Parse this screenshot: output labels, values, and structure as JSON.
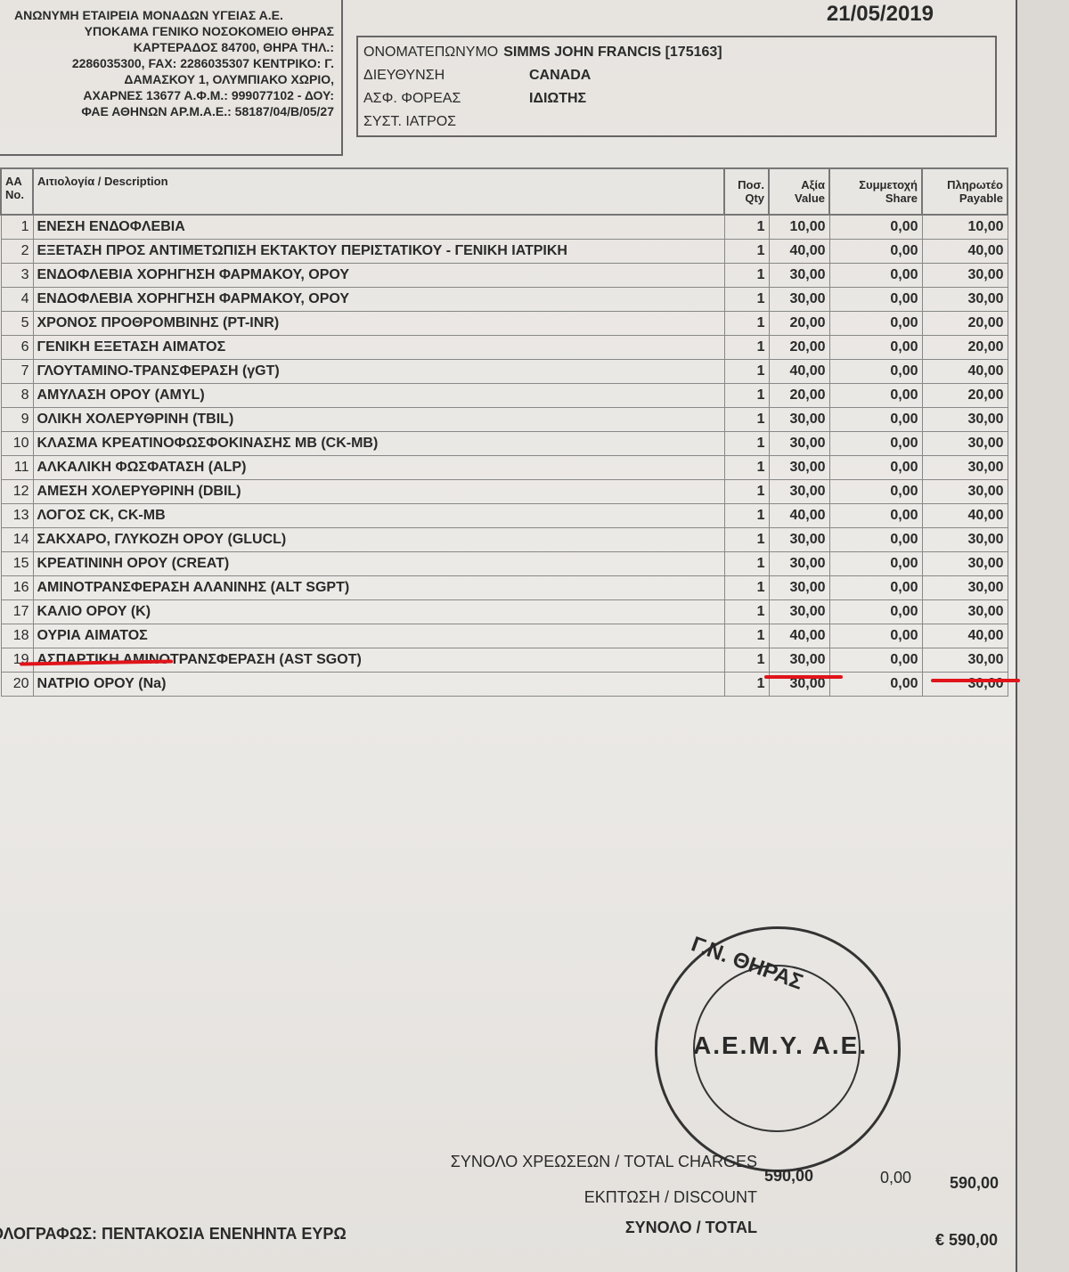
{
  "issuer": {
    "company": "ΑΝΩΝΥΜΗ ΕΤΑΙΡΕΙΑ ΜΟΝΑΔΩΝ ΥΓΕΙΑΣ Α.Ε.",
    "lines": [
      "ΥΠΟΚΑΜΑ ΓΕΝΙΚΟ ΝΟΣΟΚΟΜΕΙΟ ΘΗΡΑΣ",
      "ΚΑΡΤΕΡΑΔΟΣ 84700, ΘΗΡΑ ΤΗΛ.:",
      "2286035300, FAX: 2286035307 ΚΕΝΤΡΙΚΟ: Γ.",
      "ΔΑΜΑΣΚΟΥ 1, ΟΛΥΜΠΙΑΚΟ ΧΩΡΙΟ,",
      "ΑΧΑΡΝΕΣ 13677 Α.Φ.Μ.: 999077102 - ΔΟΥ:",
      "ΦΑΕ ΑΘΗΝΩΝ ΑΡ.Μ.Α.Ε.: 58187/04/Β/05/27"
    ]
  },
  "date": "21/05/2019",
  "patient": [
    {
      "label": "ΟΝΟΜΑΤΕΠΩΝΥΜΟ",
      "value": "SIMMS JOHN FRANCIS [175163]"
    },
    {
      "label": "ΔΙΕΥΘΥΝΣΗ",
      "value": "CANADA"
    },
    {
      "label": "ΑΣΦ. ΦΟΡΕΑΣ",
      "value": "ΙΔΙΩΤΗΣ"
    },
    {
      "label": "ΣΥΣΤ. ΙΑΤΡΟΣ",
      "value": ""
    }
  ],
  "table": {
    "headers": {
      "no": "AA No.",
      "desc": "Αιτιολογία / Description",
      "qty": "Ποσ. Qty",
      "value": "Αξία Value",
      "share": "Συμμετοχή Share",
      "payable": "Πληρωτέο Payable"
    },
    "rows": [
      [
        "1",
        "ΕΝΕΣΗ ΕΝΔΟΦΛΕΒΙΑ",
        "1",
        "10,00",
        "0,00",
        "10,00"
      ],
      [
        "2",
        "ΕΞΕΤΑΣΗ ΠΡΟΣ ΑΝΤΙΜΕΤΩΠΙΣΗ ΕΚΤΑΚΤΟΥ ΠΕΡΙΣΤΑΤΙΚΟΥ - ΓΕΝΙΚΗ ΙΑΤΡΙΚΗ",
        "1",
        "40,00",
        "0,00",
        "40,00"
      ],
      [
        "3",
        "ΕΝΔΟΦΛΕΒΙΑ ΧΟΡΗΓΗΣΗ ΦΑΡΜΑΚΟΥ, ΟΡΟΥ",
        "1",
        "30,00",
        "0,00",
        "30,00"
      ],
      [
        "4",
        "ΕΝΔΟΦΛΕΒΙΑ ΧΟΡΗΓΗΣΗ ΦΑΡΜΑΚΟΥ, ΟΡΟΥ",
        "1",
        "30,00",
        "0,00",
        "30,00"
      ],
      [
        "5",
        "ΧΡΟΝΟΣ ΠΡΟΘΡΟΜΒΙΝΗΣ (PT-INR)",
        "1",
        "20,00",
        "0,00",
        "20,00"
      ],
      [
        "6",
        "ΓΕΝΙΚΗ ΕΞΕΤΑΣΗ ΑΙΜΑΤΟΣ",
        "1",
        "20,00",
        "0,00",
        "20,00"
      ],
      [
        "7",
        "ΓΛΟΥΤΑΜΙΝΟ-ΤΡΑΝΣΦΕΡΑΣΗ (γGT)",
        "1",
        "40,00",
        "0,00",
        "40,00"
      ],
      [
        "8",
        "ΑΜΥΛΑΣΗ ΟΡΟΥ (AMYL)",
        "1",
        "20,00",
        "0,00",
        "20,00"
      ],
      [
        "9",
        "ΟΛΙΚΗ ΧΟΛΕΡΥΘΡΙΝΗ (TBIL)",
        "1",
        "30,00",
        "0,00",
        "30,00"
      ],
      [
        "10",
        "ΚΛΑΣΜΑ ΚΡΕΑΤΙΝΟΦΩΣΦΟΚΙΝΑΣΗΣ ΜΒ (CK-MB)",
        "1",
        "30,00",
        "0,00",
        "30,00"
      ],
      [
        "11",
        "ΑΛΚΑΛΙΚΗ ΦΩΣΦΑΤΑΣΗ (ALP)",
        "1",
        "30,00",
        "0,00",
        "30,00"
      ],
      [
        "12",
        "ΑΜΕΣΗ ΧΟΛΕΡΥΘΡΙΝΗ (DBIL)",
        "1",
        "30,00",
        "0,00",
        "30,00"
      ],
      [
        "13",
        "ΛΟΓΟΣ CK, CK-MB",
        "1",
        "40,00",
        "0,00",
        "40,00"
      ],
      [
        "14",
        "ΣΑΚΧΑΡΟ, ΓΛΥΚΟΖΗ ΟΡΟΥ (GLUCL)",
        "1",
        "30,00",
        "0,00",
        "30,00"
      ],
      [
        "15",
        "ΚΡΕΑΤΙΝΙΝΗ ΟΡΟΥ (CREAT)",
        "1",
        "30,00",
        "0,00",
        "30,00"
      ],
      [
        "16",
        "ΑΜΙΝΟΤΡΑΝΣΦΕΡΑΣΗ ΑΛΑΝΙΝΗΣ (ALT SGPT)",
        "1",
        "30,00",
        "0,00",
        "30,00"
      ],
      [
        "17",
        "ΚΑΛΙΟ ΟΡΟΥ (K)",
        "1",
        "30,00",
        "0,00",
        "30,00"
      ],
      [
        "18",
        "ΟΥΡΙΑ ΑΙΜΑΤΟΣ",
        "1",
        "40,00",
        "0,00",
        "40,00"
      ],
      [
        "19",
        "ΑΣΠΑΡΤΙΚΗ ΑΜΙΝΟΤΡΑΝΣΦΕΡΑΣΗ (AST SGOT)",
        "1",
        "30,00",
        "0,00",
        "30,00"
      ],
      [
        "20",
        "ΝΑΤΡΙΟ ΟΡΟΥ (Na)",
        "1",
        "30,00",
        "0,00",
        "30,00"
      ]
    ]
  },
  "stamp": {
    "top_text": "Γ.Ν. ΘΗΡΑΣ",
    "center_text": "Α.Ε.Μ.Υ. Α.Ε."
  },
  "totals": {
    "charges_label": "ΣΥΝΟΛΟ ΧΡΕΩΣΕΩΝ / TOTAL CHARGES",
    "charges_value": "590,00",
    "charges_share": "0,00",
    "charges_payable": "590,00",
    "discount_label": "ΕΚΠΤΩΣΗ / DISCOUNT",
    "total_label": "ΣΥΝΟΛΟ / TOTAL",
    "total_value": "€ 590,00",
    "in_words": "ΟΛΟΓΡΑΦΩΣ: ΠΕΝΤΑΚΟΣΙΑ ΕΝΕΝΗΝΤΑ ΕΥΡΩ"
  },
  "annotation_color": "#e0141a"
}
